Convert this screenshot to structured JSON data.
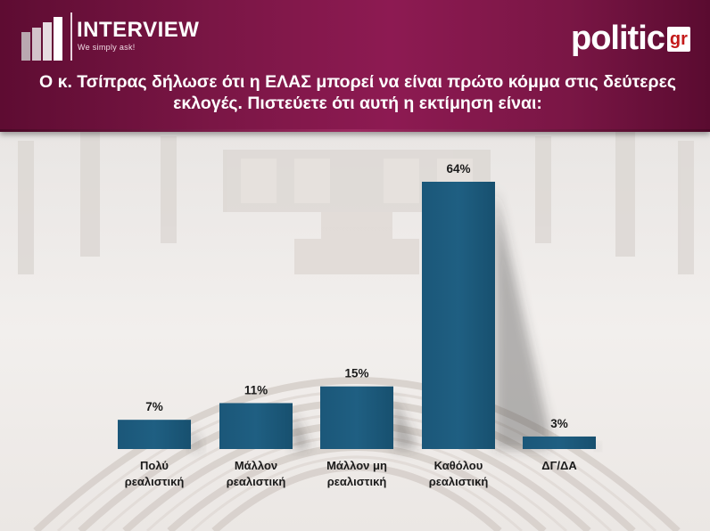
{
  "header": {
    "brand_name": "INTERVIEW",
    "brand_tagline": "We simply ask!",
    "partner_logo_text": "politic",
    "partner_logo_suffix": "gr",
    "question": "Ο κ. Τσίπρας δήλωσε ότι η ΕΛΑΣ μπορεί να είναι πρώτο κόμμα στις δεύτερες εκλογές. Πιστεύετε ότι αυτή η εκτίμηση είναι:"
  },
  "colors": {
    "header_bg": "#7a1645",
    "bar": "#1f5f82",
    "logo_red": "#c41a1a"
  },
  "chart_data": {
    "type": "bar",
    "categories": [
      [
        "Πολύ",
        "ρεαλιστική"
      ],
      [
        "Μάλλον",
        "ρεαλιστική"
      ],
      [
        "Μάλλον μη",
        "ρεαλιστική"
      ],
      [
        "Καθόλου",
        "ρεαλιστική"
      ],
      [
        "ΔΓ/ΔΑ"
      ]
    ],
    "values": [
      7,
      11,
      15,
      64,
      3
    ],
    "value_labels": [
      "7%",
      "11%",
      "15%",
      "64%",
      "3%"
    ],
    "ylim": [
      0,
      64
    ],
    "grid": false,
    "legend": "none"
  }
}
